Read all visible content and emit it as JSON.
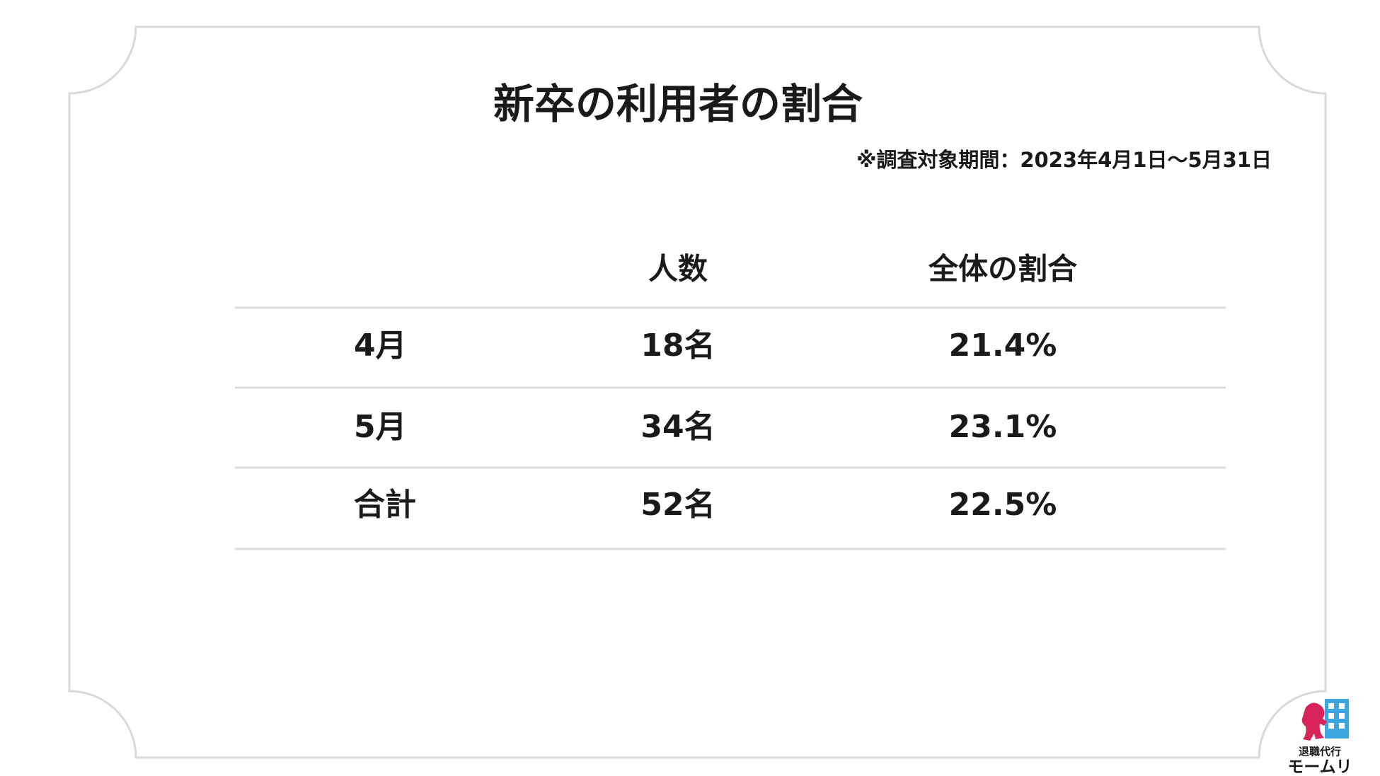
{
  "header": {
    "title": "新卒の利用者の割合",
    "note": "※調査対象期間：2023年4月1日〜5月31日"
  },
  "table": {
    "columns": [
      "人数",
      "全体の割合"
    ],
    "rows": [
      [
        "4月",
        "18名",
        "21.4%"
      ],
      [
        "5月",
        "34名",
        "23.1%"
      ],
      [
        "合計",
        "52名",
        "22.5%"
      ]
    ]
  },
  "logo": {
    "line1": "退職代行",
    "line2": "モームリ"
  }
}
